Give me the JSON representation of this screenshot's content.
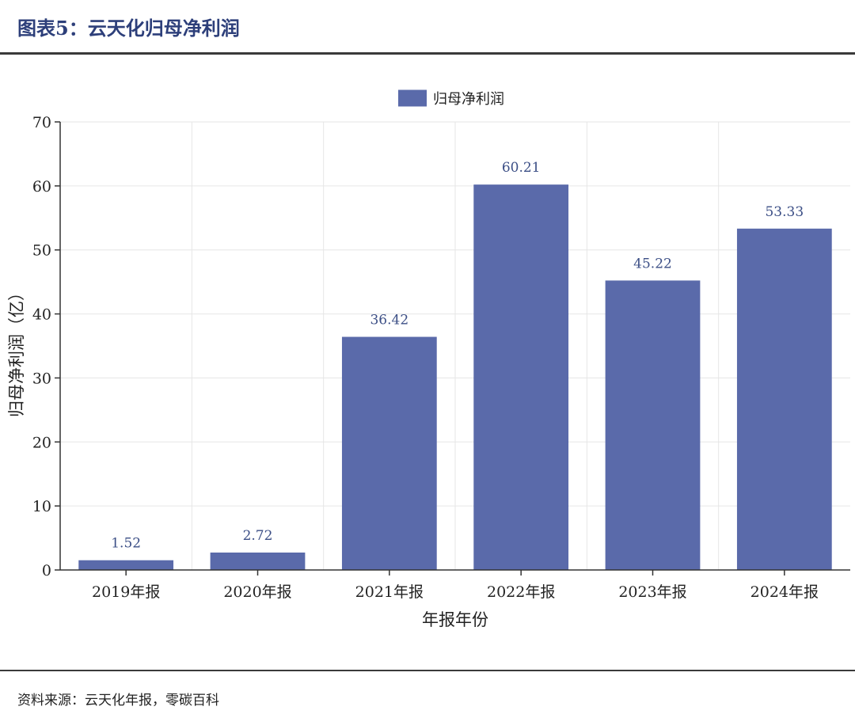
{
  "figure": {
    "title": "图表5：云天化归母净利润",
    "source": "资料来源：云天化年报，零碳百科"
  },
  "colors": {
    "bar": "#5a6aaa",
    "grid": "#e6e6e6",
    "axis": "#333333",
    "title": "#2d3f7a"
  },
  "chart_data": {
    "type": "bar",
    "categories": [
      "2019年报",
      "2020年报",
      "2021年报",
      "2022年报",
      "2023年报",
      "2024年报"
    ],
    "series": [
      {
        "name": "归母净利润",
        "values": [
          1.52,
          2.72,
          36.42,
          60.21,
          45.22,
          53.33
        ]
      }
    ],
    "data_labels": [
      "1.52",
      "2.72",
      "36.42",
      "60.21",
      "45.22",
      "53.33"
    ],
    "xlabel": "年报年份",
    "ylabel": "归母净利润（亿）",
    "ylim": [
      0,
      70
    ],
    "yticks": [
      0,
      10,
      20,
      30,
      40,
      50,
      60,
      70
    ],
    "grid": true,
    "legend_position": "top-center"
  }
}
